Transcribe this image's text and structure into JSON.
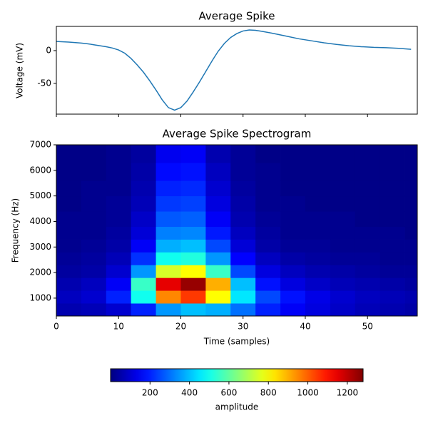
{
  "chart_data": [
    {
      "type": "line",
      "title": "Average Spike",
      "ylabel": "Voltage (mV)",
      "x": [
        0,
        2,
        4,
        5,
        6,
        8,
        9,
        10,
        11,
        12,
        13,
        14,
        15,
        16,
        17,
        18,
        19,
        20,
        21,
        22,
        23,
        24,
        25,
        26,
        27,
        28,
        29,
        30,
        31,
        32,
        33,
        35,
        37,
        39,
        41,
        43,
        45,
        47,
        49,
        51,
        53,
        55,
        57
      ],
      "series": [
        {
          "color": "#1f77b4",
          "values": [
            14,
            13,
            11.5,
            10.5,
            9,
            6,
            4,
            1,
            -4,
            -12,
            -22,
            -33,
            -46,
            -60,
            -75,
            -87,
            -91,
            -87,
            -77,
            -63,
            -48,
            -32,
            -16,
            -1,
            11,
            20,
            26,
            30,
            31.5,
            31,
            29.5,
            26,
            22,
            18,
            15,
            12,
            9.5,
            7.5,
            6,
            5,
            4.5,
            3.5,
            2
          ]
        }
      ],
      "xlim": [
        0,
        58
      ],
      "xticks": [
        0,
        10,
        20,
        30,
        40,
        50
      ],
      "ylim": [
        -97,
        37
      ],
      "yticks": [
        0,
        -50
      ]
    },
    {
      "type": "heatmap",
      "title": "Average Spike Spectrogram",
      "xlabel": "Time (samples)",
      "ylabel": "Frequency (Hz)",
      "x_edges": [
        0,
        4,
        8,
        12,
        16,
        20,
        24,
        28,
        32,
        36,
        40,
        44,
        48,
        52,
        56,
        58
      ],
      "y_edges": [
        300,
        800,
        1300,
        1800,
        2300,
        2800,
        3300,
        3800,
        4400,
        5000,
        5600,
        6300,
        7000
      ],
      "z": [
        [
          60,
          70,
          100,
          200,
          350,
          400,
          380,
          300,
          200,
          150,
          120,
          90,
          70,
          60,
          50
        ],
        [
          80,
          100,
          200,
          500,
          950,
          1050,
          800,
          450,
          250,
          180,
          130,
          100,
          80,
          70,
          60
        ],
        [
          60,
          80,
          150,
          550,
          1150,
          1250,
          900,
          400,
          180,
          120,
          90,
          70,
          60,
          50,
          40
        ],
        [
          40,
          50,
          100,
          350,
          750,
          800,
          550,
          250,
          120,
          80,
          60,
          50,
          40,
          30,
          30
        ],
        [
          30,
          40,
          70,
          220,
          500,
          520,
          350,
          160,
          80,
          50,
          40,
          30,
          30,
          20,
          20
        ],
        [
          20,
          30,
          50,
          150,
          380,
          400,
          250,
          110,
          50,
          30,
          30,
          20,
          20,
          20,
          20
        ],
        [
          20,
          20,
          40,
          110,
          320,
          330,
          190,
          80,
          40,
          20,
          20,
          20,
          20,
          20,
          10
        ],
        [
          20,
          20,
          30,
          90,
          270,
          280,
          150,
          60,
          30,
          20,
          20,
          20,
          10,
          10,
          10
        ],
        [
          10,
          20,
          30,
          70,
          230,
          240,
          120,
          50,
          20,
          20,
          10,
          10,
          10,
          10,
          10
        ],
        [
          10,
          20,
          20,
          60,
          200,
          210,
          100,
          40,
          20,
          10,
          10,
          10,
          10,
          10,
          10
        ],
        [
          10,
          10,
          20,
          50,
          170,
          180,
          80,
          30,
          20,
          10,
          10,
          10,
          10,
          10,
          10
        ],
        [
          10,
          10,
          20,
          40,
          140,
          150,
          60,
          30,
          10,
          10,
          10,
          10,
          10,
          10,
          10
        ]
      ],
      "colormap": "jet",
      "xlim": [
        0,
        58
      ],
      "xticks": [
        0,
        10,
        20,
        30,
        40,
        50
      ],
      "ylim": [
        300,
        7000
      ],
      "yticks": [
        1000,
        2000,
        3000,
        4000,
        5000,
        6000,
        7000
      ],
      "colorbar": {
        "label": "amplitude",
        "lim": [
          0,
          1280
        ],
        "ticks": [
          200,
          400,
          600,
          800,
          1000,
          1200
        ]
      }
    }
  ]
}
